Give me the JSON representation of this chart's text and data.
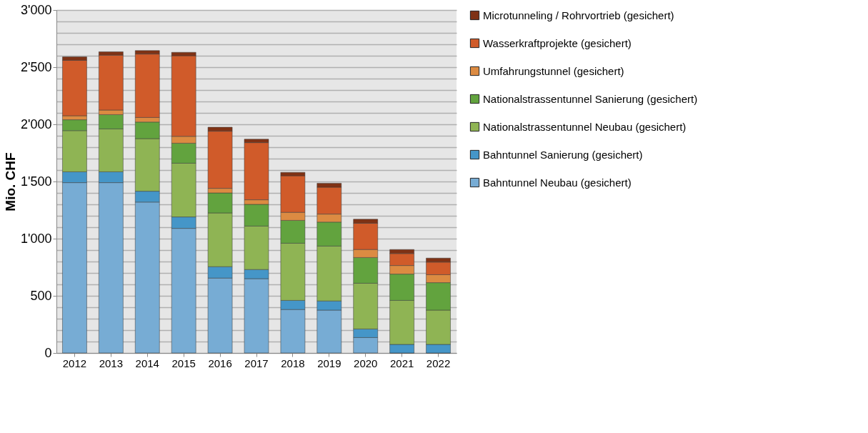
{
  "chart_data": {
    "type": "bar",
    "stacked": true,
    "ylabel": "Mio. CHF",
    "categories": [
      "2012",
      "2013",
      "2014",
      "2015",
      "2016",
      "2017",
      "2018",
      "2019",
      "2020",
      "2021",
      "2022"
    ],
    "series": [
      {
        "name": "Bahntunnel Neubau (gesichert)",
        "color": "#77acd4",
        "values": [
          1490,
          1490,
          1320,
          1090,
          655,
          650,
          380,
          375,
          135,
          0,
          0
        ]
      },
      {
        "name": "Bahntunnel Sanierung (gesichert)",
        "color": "#4596c8",
        "values": [
          95,
          95,
          95,
          100,
          100,
          80,
          80,
          80,
          75,
          75,
          75
        ]
      },
      {
        "name": "Nationalstrassentunnel Neubau (gesichert)",
        "color": "#8fb454",
        "values": [
          360,
          375,
          460,
          470,
          470,
          380,
          500,
          480,
          400,
          385,
          300
        ]
      },
      {
        "name": "Nationalstrassentunnel Sanierung (gesichert)",
        "color": "#62a33e",
        "values": [
          95,
          125,
          145,
          175,
          175,
          190,
          200,
          210,
          225,
          230,
          240
        ]
      },
      {
        "name": "Umfahrungstunnel (gesichert)",
        "color": "#dc8b42",
        "values": [
          35,
          40,
          40,
          60,
          40,
          40,
          70,
          70,
          70,
          75,
          70
        ]
      },
      {
        "name": "Wasserkraftprojekte (gesichert)",
        "color": "#d05b2a",
        "values": [
          485,
          480,
          555,
          705,
          500,
          500,
          320,
          235,
          230,
          105,
          110
        ]
      },
      {
        "name": "Microtunneling / Rohrvortrieb (gesichert)",
        "color": "#7f3215",
        "values": [
          30,
          30,
          30,
          30,
          35,
          30,
          30,
          35,
          35,
          35,
          35
        ]
      }
    ],
    "ylim": [
      0,
      3000
    ],
    "yticks": [
      0,
      {
        "value": 100,
        "label": null
      },
      {
        "value": 200,
        "label": null
      },
      {
        "value": 300,
        "label": null
      },
      {
        "value": 400,
        "label": null
      },
      500,
      {
        "value": 600,
        "label": null
      },
      {
        "value": 700,
        "label": null
      },
      {
        "value": 800,
        "label": null
      },
      {
        "value": 900,
        "label": null
      },
      {
        "value": 1000,
        "label": "1'000"
      },
      {
        "value": 1100,
        "label": null
      },
      {
        "value": 1200,
        "label": null
      },
      {
        "value": 1300,
        "label": null
      },
      {
        "value": 1400,
        "label": null
      },
      {
        "value": 1500,
        "label": "1'500"
      },
      {
        "value": 1600,
        "label": null
      },
      {
        "value": 1700,
        "label": null
      },
      {
        "value": 1800,
        "label": null
      },
      {
        "value": 1900,
        "label": null
      },
      {
        "value": 2000,
        "label": "2'000"
      },
      {
        "value": 2100,
        "label": null
      },
      {
        "value": 2200,
        "label": null
      },
      {
        "value": 2300,
        "label": null
      },
      {
        "value": 2400,
        "label": null
      },
      {
        "value": 2500,
        "label": "2'500"
      },
      {
        "value": 2600,
        "label": null
      },
      {
        "value": 2700,
        "label": null
      },
      {
        "value": 2800,
        "label": null
      },
      {
        "value": 2900,
        "label": null
      },
      {
        "value": 3000,
        "label": "3'000"
      }
    ],
    "grid": "y",
    "legend": "right"
  }
}
